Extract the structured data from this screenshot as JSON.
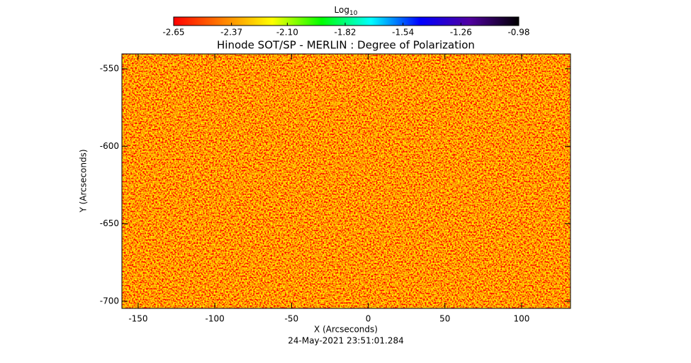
{
  "chart_data": {
    "type": "heatmap",
    "title": "Hinode SOT/SP - MERLIN : Degree of Polarization",
    "xlabel": "X (Arcseconds)",
    "ylabel": "Y (Arcseconds)",
    "footnote": "24-May-2021 23:51:01.284",
    "xlim": [
      -160.6,
      131.9
    ],
    "xticks": [
      -150,
      -100,
      -50,
      0,
      50,
      100
    ],
    "ylim": [
      -704.6,
      -540.4
    ],
    "yticks": [
      -550,
      -600,
      -650,
      -700
    ],
    "colorbar": {
      "label": "Log",
      "label_subscript": "10",
      "clim": [
        -2.65,
        -0.98
      ],
      "ticks": [
        -2.65,
        -2.37,
        {
          "value": -2.1,
          "label": "-2.10"
        },
        -1.82,
        -1.54,
        -1.26,
        -0.98
      ],
      "colormap": [
        "#ff0000",
        "#ff8000",
        "#ffff00",
        "#00ff00",
        "#00ffff",
        "#0000ff",
        "#5000a0",
        "#000000"
      ]
    }
  }
}
